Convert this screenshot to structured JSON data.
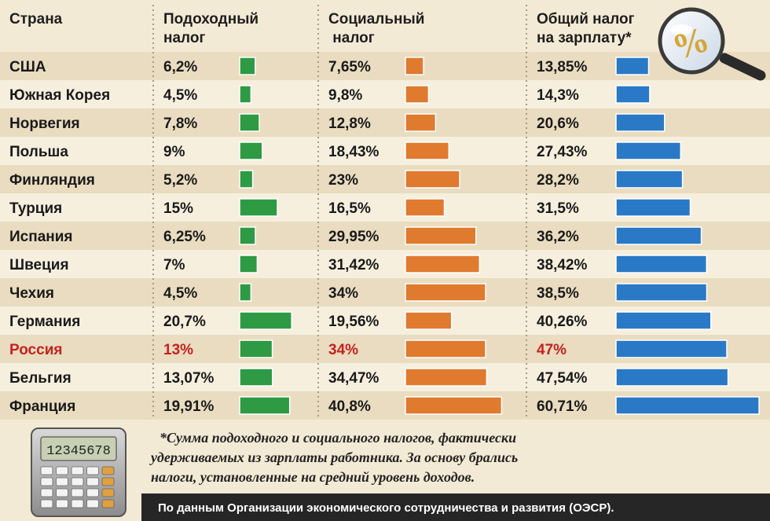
{
  "chart_data": {
    "type": "table",
    "headers": {
      "country": "Страна",
      "income": [
        "Подоходный",
        "налог"
      ],
      "social": [
        "Социальный",
        " налог"
      ],
      "total": [
        "Общий налог",
        "на зарплату*"
      ]
    },
    "highlight": "Россия",
    "rows": [
      {
        "country": "США",
        "income": 6.2,
        "income_label": "6,2%",
        "social": 7.65,
        "social_label": "7,65%",
        "total": 13.85,
        "total_label": "13,85%"
      },
      {
        "country": "Южная Корея",
        "income": 4.5,
        "income_label": "4,5%",
        "social": 9.8,
        "social_label": "9,8%",
        "total": 14.3,
        "total_label": "14,3%"
      },
      {
        "country": "Норвегия",
        "income": 7.8,
        "income_label": "7,8%",
        "social": 12.8,
        "social_label": "12,8%",
        "total": 20.6,
        "total_label": "20,6%"
      },
      {
        "country": "Польша",
        "income": 9,
        "income_label": "9%",
        "social": 18.43,
        "social_label": "18,43%",
        "total": 27.43,
        "total_label": "27,43%"
      },
      {
        "country": "Финляндия",
        "income": 5.2,
        "income_label": "5,2%",
        "social": 23,
        "social_label": "23%",
        "total": 28.2,
        "total_label": "28,2%"
      },
      {
        "country": "Турция",
        "income": 15,
        "income_label": "15%",
        "social": 16.5,
        "social_label": "16,5%",
        "total": 31.5,
        "total_label": "31,5%"
      },
      {
        "country": "Испания",
        "income": 6.25,
        "income_label": "6,25%",
        "social": 29.95,
        "social_label": "29,95%",
        "total": 36.2,
        "total_label": "36,2%"
      },
      {
        "country": "Швеция",
        "income": 7,
        "income_label": "7%",
        "social": 31.42,
        "social_label": "31,42%",
        "total": 38.42,
        "total_label": "38,42%"
      },
      {
        "country": "Чехия",
        "income": 4.5,
        "income_label": "4,5%",
        "social": 34,
        "social_label": "34%",
        "total": 38.5,
        "total_label": "38,5%"
      },
      {
        "country": "Германия",
        "income": 20.7,
        "income_label": "20,7%",
        "social": 19.56,
        "social_label": "19,56%",
        "total": 40.26,
        "total_label": "40,26%"
      },
      {
        "country": "Россия",
        "income": 13,
        "income_label": "13%",
        "social": 34,
        "social_label": "34%",
        "total": 47,
        "total_label": "47%"
      },
      {
        "country": "Бельгия",
        "income": 13.07,
        "income_label": "13,07%",
        "social": 34.47,
        "social_label": "34,47%",
        "total": 47.54,
        "total_label": "47,54%"
      },
      {
        "country": "Франция",
        "income": 19.91,
        "income_label": "19,91%",
        "social": 40.8,
        "social_label": "40,8%",
        "total": 60.71,
        "total_label": "60,71%"
      }
    ],
    "colors": {
      "income": "#2e9a44",
      "social": "#e07a2e",
      "total": "#2a79c6",
      "highlight": "#c6211e",
      "row_dark": "#e9dcc0",
      "row_light": "#f6efde"
    }
  },
  "icons": {
    "magnifier": "magnifier-percent-icon",
    "calculator": "calculator-icon"
  },
  "calculator_display": "12345678",
  "magnifier_symbol": "%",
  "footnote": [
    "*Сумма подоходного и социального налогов, фактически",
    "удерживаемых из зарплаты работника. За основу брались",
    "налоги, установленные на средний уровень доходов."
  ],
  "source": "По данным Организации экономического сотрудничества и развития (ОЭСР)."
}
